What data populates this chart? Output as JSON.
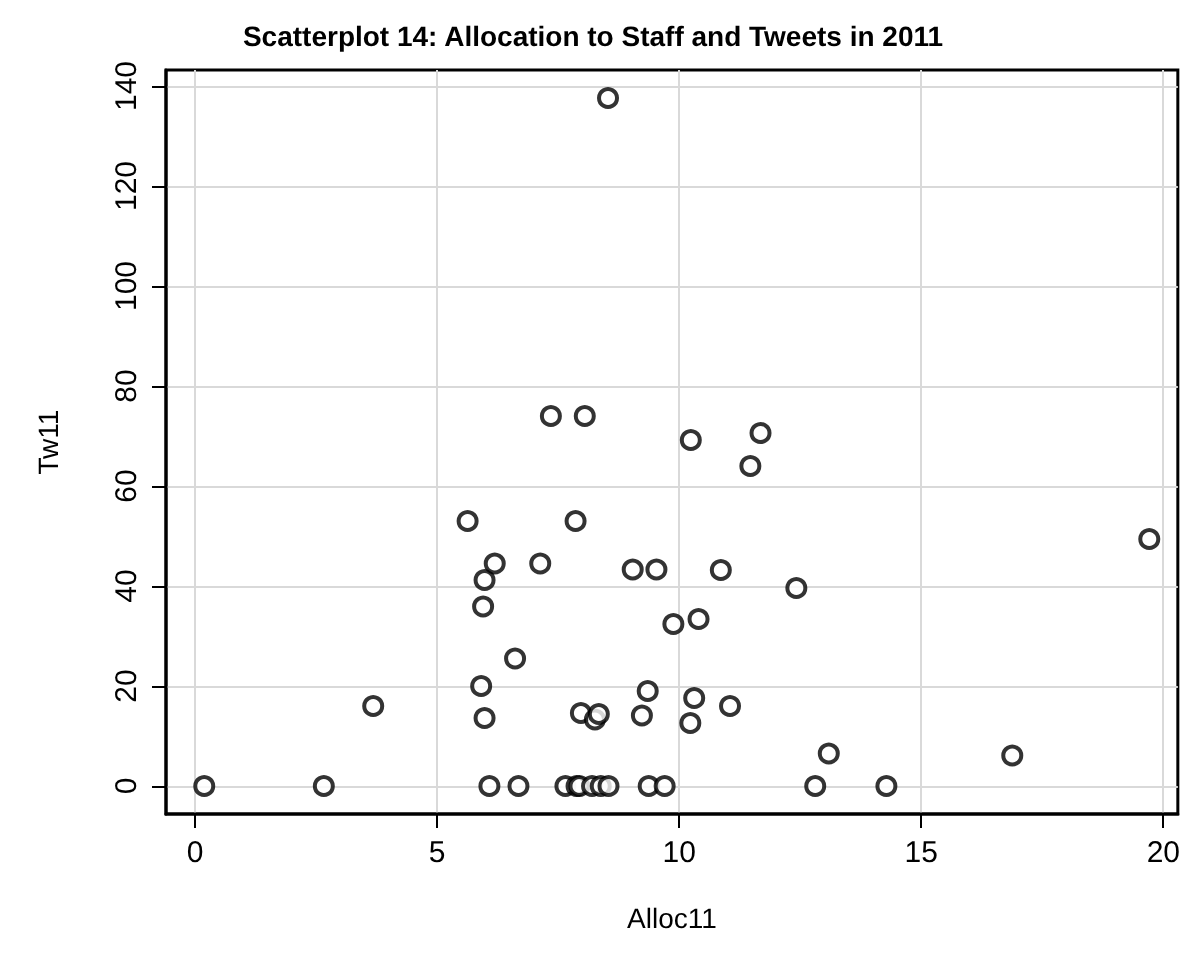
{
  "chart_data": {
    "type": "scatter",
    "title": "Scatterplot 14: Allocation to Staff and Tweets in 2011",
    "xlabel": "Alloc11",
    "ylabel": "Tw11",
    "x": [
      0.19,
      2.66,
      3.68,
      5.63,
      5.91,
      5.95,
      5.98,
      5.98,
      6.08,
      6.19,
      6.61,
      6.68,
      7.13,
      7.35,
      7.65,
      7.86,
      7.97,
      7.88,
      7.94,
      8.05,
      8.2,
      8.26,
      8.34,
      8.38,
      8.54,
      8.53,
      9.04,
      9.23,
      9.35,
      9.37,
      9.53,
      9.7,
      9.88,
      10.24,
      10.23,
      10.31,
      10.4,
      10.86,
      11.05,
      11.47,
      11.68,
      12.42,
      12.81,
      13.09,
      14.28,
      16.88,
      19.71
    ],
    "series": [
      {
        "color": "#000000",
        "values": [
          0,
          0,
          16,
          53,
          20,
          35.9,
          41.2,
          13.6,
          0,
          44.5,
          25.5,
          0,
          44.5,
          74,
          0,
          53,
          14.6,
          0,
          0,
          74,
          0,
          13.3,
          14.4,
          0,
          0,
          137.6,
          43.3,
          14.1,
          19,
          0,
          43.3,
          0,
          32.4,
          69.2,
          12.6,
          17.6,
          33.4,
          43.2,
          16,
          64,
          70.6,
          39.6,
          0,
          6.5,
          0,
          6.1,
          49.4
        ]
      }
    ],
    "xlim": [
      -0.6,
      20.3
    ],
    "xticks": [
      0,
      5,
      10,
      15,
      20
    ],
    "ylim": [
      -5.6,
      143.2
    ],
    "yticks": [
      0,
      20,
      40,
      60,
      80,
      100,
      120,
      140
    ],
    "grid": true,
    "marker": "circle"
  }
}
